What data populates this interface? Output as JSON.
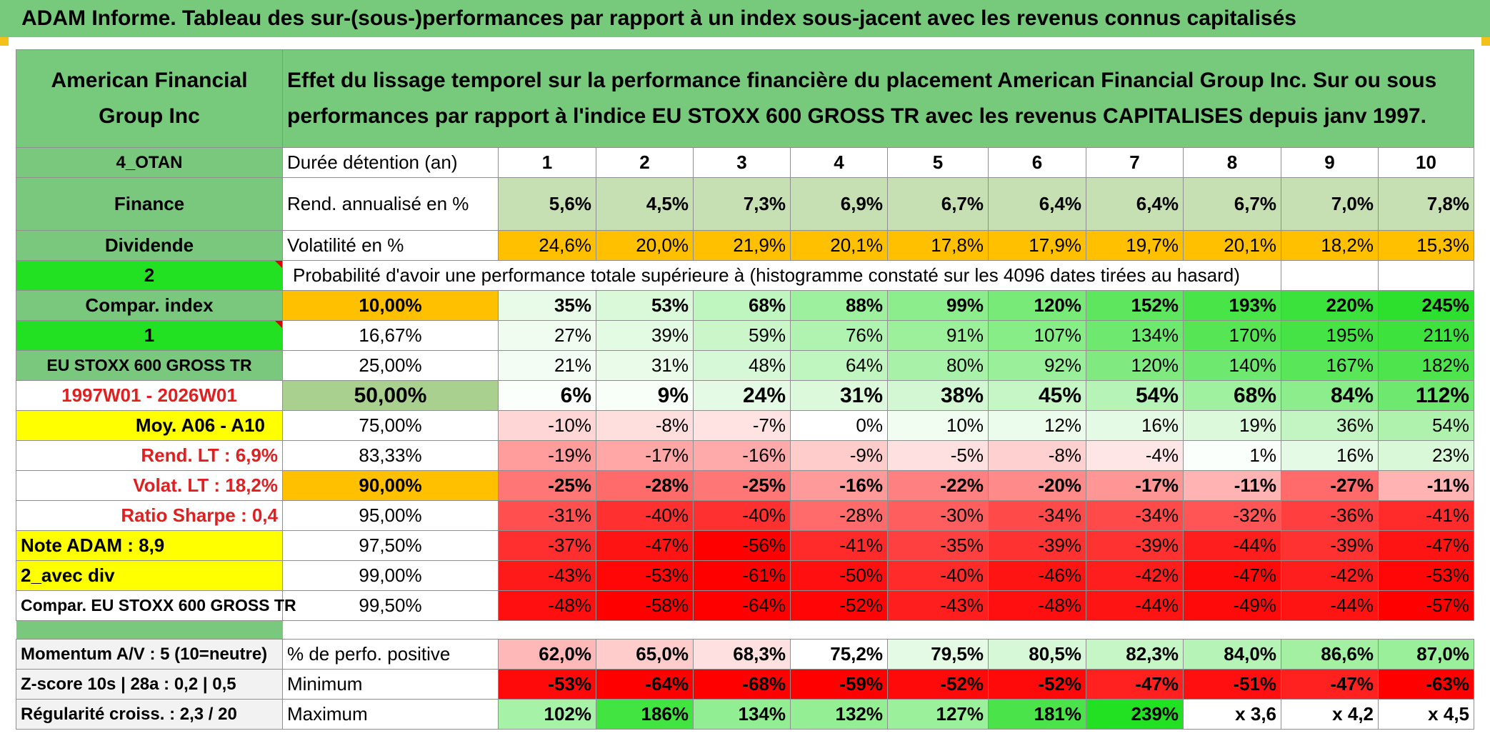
{
  "banner": "ADAM Informe. Tableau des sur-(sous-)performances par rapport à un index sous-jacent avec les revenus connus capitalisés",
  "header": {
    "company": "American Financial Group Inc",
    "description": "Effet du lissage temporel sur la performance financière du placement American Financial Group Inc. Sur ou sous performances par rapport à l'indice EU STOXX 600 GROSS TR avec les revenus CAPITALISES depuis janv 1997."
  },
  "labels": {
    "r1": "4_OTAN",
    "r2": "Finance",
    "r3": "Dividende",
    "r4": "2",
    "r5": "Compar. index",
    "r6": "1",
    "r7": "EU STOXX 600 GROSS TR",
    "r8": "1997W01 - 2026W01",
    "r9": "Moy. A06 - A10",
    "r10": "Rend. LT :   6,9%",
    "r11": "Volat. LT :   18,2%",
    "r12": "Ratio Sharpe :   0,4",
    "r13": "Note ADAM : 8,9",
    "r14": "2_avec div",
    "r15": "Compar. EU STOXX 600 GROSS TR",
    "m1": "Momentum A/V : 5 (10=neutre)",
    "m2": "Z-score 10s | 28a : 0,2 | 0,5",
    "m3": "Régularité croiss. : 2,3 / 20"
  },
  "durations": {
    "label": "Durée détention (an)",
    "years": [
      "1",
      "2",
      "3",
      "4",
      "5",
      "6",
      "7",
      "8",
      "9",
      "10"
    ]
  },
  "rend": {
    "label": "Rend. annualisé en %",
    "values": [
      "5,6%",
      "4,5%",
      "7,3%",
      "6,9%",
      "6,7%",
      "6,4%",
      "6,4%",
      "6,7%",
      "7,0%",
      "7,8%"
    ]
  },
  "vol": {
    "label": "Volatilité en %",
    "values": [
      "24,6%",
      "20,0%",
      "21,9%",
      "20,1%",
      "17,8%",
      "17,9%",
      "19,7%",
      "20,1%",
      "18,2%",
      "15,3%"
    ]
  },
  "proba_label": "Probabilité d'avoir une performance totale supérieure à (histogramme constaté sur les 4096 dates tirées au hasard)",
  "percentiles": [
    {
      "p": "10,00%",
      "v": [
        "35%",
        "53%",
        "68%",
        "88%",
        "99%",
        "120%",
        "152%",
        "193%",
        "220%",
        "245%"
      ]
    },
    {
      "p": "16,67%",
      "v": [
        "27%",
        "39%",
        "59%",
        "76%",
        "91%",
        "107%",
        "134%",
        "170%",
        "195%",
        "211%"
      ]
    },
    {
      "p": "25,00%",
      "v": [
        "21%",
        "31%",
        "48%",
        "64%",
        "80%",
        "92%",
        "120%",
        "140%",
        "167%",
        "182%"
      ]
    },
    {
      "p": "50,00%",
      "v": [
        "6%",
        "9%",
        "24%",
        "31%",
        "38%",
        "45%",
        "54%",
        "68%",
        "84%",
        "112%"
      ]
    },
    {
      "p": "75,00%",
      "v": [
        "-10%",
        "-8%",
        "-7%",
        "0%",
        "10%",
        "12%",
        "16%",
        "19%",
        "36%",
        "54%"
      ]
    },
    {
      "p": "83,33%",
      "v": [
        "-19%",
        "-17%",
        "-16%",
        "-9%",
        "-5%",
        "-8%",
        "-4%",
        "1%",
        "16%",
        "23%"
      ]
    },
    {
      "p": "90,00%",
      "v": [
        "-25%",
        "-28%",
        "-25%",
        "-16%",
        "-22%",
        "-20%",
        "-17%",
        "-11%",
        "-27%",
        "-11%"
      ]
    },
    {
      "p": "95,00%",
      "v": [
        "-31%",
        "-40%",
        "-40%",
        "-28%",
        "-30%",
        "-34%",
        "-34%",
        "-32%",
        "-36%",
        "-41%"
      ]
    },
    {
      "p": "97,50%",
      "v": [
        "-37%",
        "-47%",
        "-56%",
        "-41%",
        "-35%",
        "-39%",
        "-39%",
        "-44%",
        "-39%",
        "-47%"
      ]
    },
    {
      "p": "99,00%",
      "v": [
        "-43%",
        "-53%",
        "-61%",
        "-50%",
        "-40%",
        "-46%",
        "-42%",
        "-47%",
        "-42%",
        "-53%"
      ]
    },
    {
      "p": "99,50%",
      "v": [
        "-48%",
        "-58%",
        "-64%",
        "-52%",
        "-43%",
        "-48%",
        "-44%",
        "-49%",
        "-44%",
        "-57%"
      ]
    }
  ],
  "stats": [
    {
      "label": "% de perfo. positive",
      "v": [
        "62,0%",
        "65,0%",
        "68,3%",
        "75,2%",
        "79,5%",
        "80,5%",
        "82,3%",
        "84,0%",
        "86,6%",
        "87,0%"
      ]
    },
    {
      "label": "Minimum",
      "v": [
        "-53%",
        "-64%",
        "-68%",
        "-59%",
        "-52%",
        "-52%",
        "-47%",
        "-51%",
        "-47%",
        "-63%"
      ]
    },
    {
      "label": "Maximum",
      "v": [
        "102%",
        "186%",
        "134%",
        "132%",
        "127%",
        "181%",
        "239%",
        "x 3,6",
        "x 4,2",
        "x 4,5"
      ]
    }
  ],
  "colors": {
    "pct": [
      [
        "#e8fbe8",
        "#d9f9d9",
        "#bff5bf",
        "#9df09d",
        "#8ced8c",
        "#78ea78",
        "#5ee75e",
        "#48e448",
        "#3ce23c",
        "#2ee02e"
      ],
      [
        "#effcef",
        "#e3fae3",
        "#caf6ca",
        "#b0f3b0",
        "#9cf09c",
        "#87ed87",
        "#6ee86e",
        "#55e555",
        "#45e345",
        "#3de23d"
      ],
      [
        "#f4fdf4",
        "#eafbea",
        "#d6f8d6",
        "#bff5bf",
        "#a8f1a8",
        "#9af09a",
        "#80ea80",
        "#6ee86e",
        "#59e659",
        "#4de44d"
      ],
      [
        "#fbfffb",
        "#f8fef8",
        "#e4fae4",
        "#dcf9dc",
        "#d2f7d2",
        "#c6f6c6",
        "#b6f3b6",
        "#9ff09f",
        "#8ced8c",
        "#6ee86e"
      ],
      [
        "#ffd6d6",
        "#ffdede",
        "#ffe2e2",
        "#ffffff",
        "#f1fdf1",
        "#ecfcec",
        "#e4fae4",
        "#dcf9dc",
        "#c3f5c3",
        "#aef2ae"
      ],
      [
        "#ff9c9c",
        "#ffa6a6",
        "#ffaaaa",
        "#ffcccc",
        "#ffe0e0",
        "#ffd0d0",
        "#ffe6e6",
        "#fbfffb",
        "#e4fae4",
        "#d8f8d8"
      ],
      [
        "#ff7676",
        "#ff6a6a",
        "#ff7676",
        "#ff9a9a",
        "#ff8080",
        "#ff8a8a",
        "#ff9696",
        "#ffb3b3",
        "#ff6a6a",
        "#ffb3b3"
      ],
      [
        "#ff4f4f",
        "#ff3030",
        "#ff3030",
        "#ff6a6a",
        "#ff5e5e",
        "#ff4a4a",
        "#ff4a4a",
        "#ff5555",
        "#ff3f3f",
        "#ff2a2a"
      ],
      [
        "#ff2f2f",
        "#ff1414",
        "#ff0000",
        "#ff2a2a",
        "#ff4040",
        "#ff3232",
        "#ff3232",
        "#ff1e1e",
        "#ff3232",
        "#ff1414"
      ],
      [
        "#ff1a1a",
        "#ff0707",
        "#ff0000",
        "#ff0f0f",
        "#ff2a2a",
        "#ff1414",
        "#ff1e1e",
        "#ff0a0a",
        "#ff1e1e",
        "#ff0707"
      ],
      [
        "#ff0f0f",
        "#ff0000",
        "#ff0000",
        "#ff0505",
        "#ff1e1e",
        "#ff0f0f",
        "#ff1414",
        "#ff0a0a",
        "#ff1414",
        "#ff0000"
      ]
    ],
    "stats": [
      [
        "#ffb8b8",
        "#ffcccc",
        "#ffe0e0",
        "#ffffff",
        "#e4fae4",
        "#d6f8d6",
        "#c6f6c6",
        "#b6f3b6",
        "#a3f0a3",
        "#9aef9a"
      ],
      [
        "#ff0a0a",
        "#ff0000",
        "#ff0000",
        "#ff0000",
        "#ff0a0a",
        "#ff0a0a",
        "#ff2020",
        "#ff0f0f",
        "#ff2020",
        "#ff0000"
      ],
      [
        "#a6f2a6",
        "#42e442",
        "#92ee92",
        "#94ef94",
        "#9bf09b",
        "#4ae44a",
        "#22e022",
        "#ffffff",
        "#ffffff",
        "#ffffff"
      ]
    ]
  }
}
